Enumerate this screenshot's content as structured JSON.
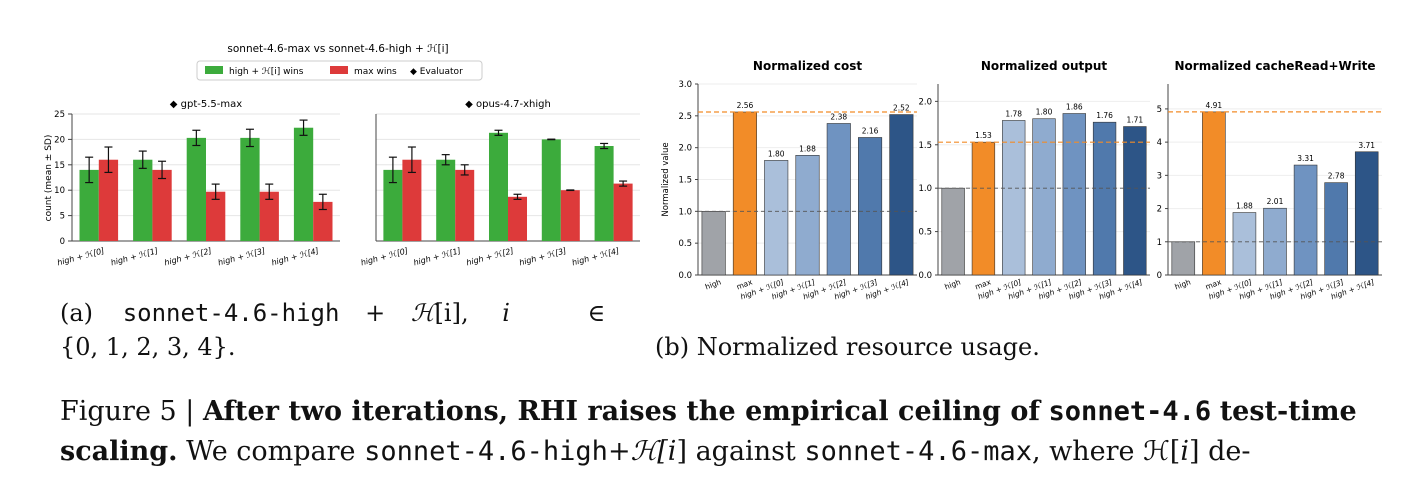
{
  "panel_a": {
    "title": "sonnet-4.6-max vs sonnet-4.6-high + ℋ[i]",
    "legend": [
      {
        "label": "high + ℋ[i] wins",
        "color": "#2ca02c"
      },
      {
        "label": "max wins",
        "color": "#d62728"
      },
      {
        "label": "◆ Evaluator",
        "color": "#000000"
      }
    ],
    "ylabel": "count (mean ± SD)"
  },
  "panel_b_titles": [
    "Normalized cost",
    "Normalized output",
    "Normalized cacheRead+Write"
  ],
  "caption_a": {
    "prefix": "(a)",
    "model": "sonnet-4.6-high",
    "plus": "+",
    "H": "ℋ",
    "index": "[i],",
    "var": "i",
    "in": "∈",
    "set": "{0, 1, 2, 3, 4}."
  },
  "caption_b": "(b) Normalized resource usage.",
  "figure_caption": {
    "label": "Figure 5 |",
    "bold_text": "After two iterations, RHI raises the empirical ceiling of",
    "bold_mono": "sonnet-4.6",
    "bold_text2": "test-time",
    "bold_line2": "scaling.",
    "t1": "We compare",
    "m1": "sonnet-4.6-high",
    "plusH": "+ℋ[",
    "i": "i",
    "close": "]",
    "t2": "against",
    "m2": "sonnet-4.6-max",
    "t3": ", where ℋ[",
    "t4": "] de-"
  },
  "chart_data": [
    {
      "type": "bar",
      "title": "◆ gpt-5.5-max",
      "categories": [
        "high + ℋ[0]",
        "high + ℋ[1]",
        "high + ℋ[2]",
        "high + ℋ[3]",
        "high + ℋ[4]"
      ],
      "series": [
        {
          "name": "high + ℋ[i] wins",
          "values": [
            14,
            16,
            20.3,
            20.3,
            22.3
          ],
          "sd": [
            2.5,
            1.7,
            1.5,
            1.7,
            1.5
          ],
          "color": "#3cab3c"
        },
        {
          "name": "max wins",
          "values": [
            16,
            14,
            9.7,
            9.7,
            7.7
          ],
          "sd": [
            2.5,
            1.7,
            1.5,
            1.5,
            1.5
          ],
          "color": "#dd3a3a"
        }
      ],
      "ylabel": "count (mean ± SD)",
      "ylim": [
        0,
        25
      ],
      "yticks": [
        0,
        5,
        10,
        15,
        20,
        25
      ],
      "grid": true
    },
    {
      "type": "bar",
      "title": "◆ opus-4.7-xhigh",
      "categories": [
        "high + ℋ[0]",
        "high + ℋ[1]",
        "high + ℋ[2]",
        "high + ℋ[3]",
        "high + ℋ[4]"
      ],
      "series": [
        {
          "name": "high + ℋ[i] wins",
          "values": [
            14,
            16,
            21.3,
            20,
            18.7
          ],
          "sd": [
            2.5,
            1,
            0.5,
            0.05,
            0.5
          ],
          "color": "#3cab3c"
        },
        {
          "name": "max wins",
          "values": [
            16,
            14,
            8.7,
            10,
            11.3
          ],
          "sd": [
            2.5,
            1,
            0.5,
            0.05,
            0.5
          ],
          "color": "#dd3a3a"
        }
      ],
      "ylim": [
        0,
        25
      ],
      "grid": true
    },
    {
      "type": "bar",
      "title": "Normalized cost",
      "categories": [
        "high",
        "max",
        "high + ℋ[0]",
        "high + ℋ[1]",
        "high + ℋ[2]",
        "high + ℋ[3]",
        "high + ℋ[4]"
      ],
      "values": [
        1.0,
        2.56,
        1.8,
        1.88,
        2.38,
        2.16,
        2.52
      ],
      "labels": [
        "",
        "2.56",
        "1.80",
        "1.88",
        "2.38",
        "2.16",
        "2.52"
      ],
      "colors": [
        "#a0a3a8",
        "#f28c28",
        "#aabfda",
        "#8fabcf",
        "#6f93c1",
        "#5079ac",
        "#2d5587"
      ],
      "ylabel": "Normalized value",
      "ylim": [
        0,
        3.0
      ],
      "yticks": [
        "0.0",
        "0.5",
        "1.0",
        "1.5",
        "2.0",
        "2.5",
        "3.0"
      ],
      "refs": {
        "baseline": 1.0,
        "max": 2.56
      }
    },
    {
      "type": "bar",
      "title": "Normalized output",
      "categories": [
        "high",
        "max",
        "high + ℋ[0]",
        "high + ℋ[1]",
        "high + ℋ[2]",
        "high + ℋ[3]",
        "high + ℋ[4]"
      ],
      "values": [
        1.0,
        1.53,
        1.78,
        1.8,
        1.86,
        1.76,
        1.71
      ],
      "labels": [
        "",
        "1.53",
        "1.78",
        "1.80",
        "1.86",
        "1.76",
        "1.71"
      ],
      "colors": [
        "#a0a3a8",
        "#f28c28",
        "#aabfda",
        "#8fabcf",
        "#6f93c1",
        "#5079ac",
        "#2d5587"
      ],
      "ylim": [
        0,
        2.2
      ],
      "yticks": [
        "0.0",
        "0.5",
        "1.0",
        "1.5",
        "2.0"
      ],
      "refs": {
        "baseline": 1.0,
        "max": 1.53
      }
    },
    {
      "type": "bar",
      "title": "Normalized cacheRead+Write",
      "categories": [
        "high",
        "max",
        "high + ℋ[0]",
        "high + ℋ[1]",
        "high + ℋ[2]",
        "high + ℋ[3]",
        "high + ℋ[4]"
      ],
      "values": [
        1.0,
        4.91,
        1.88,
        2.01,
        3.31,
        2.78,
        3.71
      ],
      "labels": [
        "",
        "4.91",
        "1.88",
        "2.01",
        "3.31",
        "2.78",
        "3.71"
      ],
      "colors": [
        "#a0a3a8",
        "#f28c28",
        "#aabfda",
        "#8fabcf",
        "#6f93c1",
        "#5079ac",
        "#2d5587"
      ],
      "ylim": [
        0,
        5.75
      ],
      "yticks": [
        "0",
        "1",
        "2",
        "3",
        "4",
        "5"
      ],
      "refs": {
        "baseline": 1.0,
        "max": 4.91
      }
    }
  ]
}
